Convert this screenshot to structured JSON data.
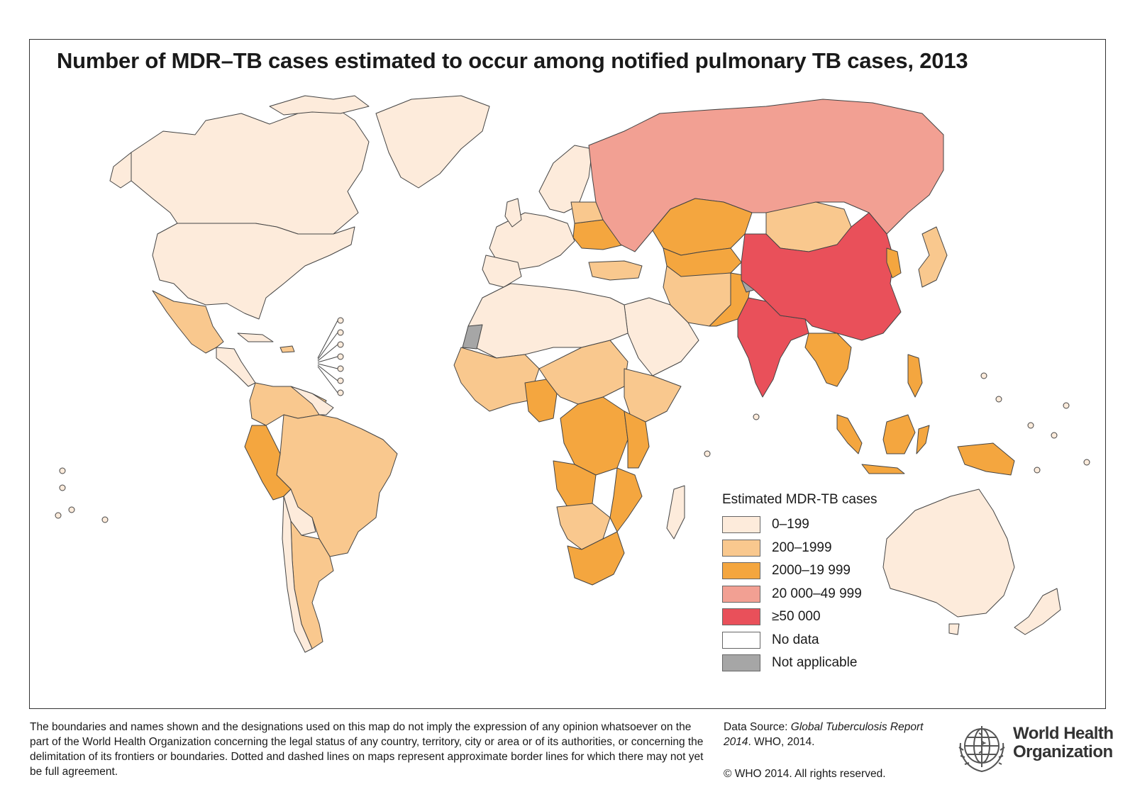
{
  "title": "Number of MDR–TB cases estimated to occur among notified pulmonary TB cases, 2013",
  "legend": {
    "heading": "Estimated MDR-TB cases",
    "items": [
      {
        "label": "0–199",
        "color": "#fdebdb"
      },
      {
        "label": "200–1999",
        "color": "#f9c88e"
      },
      {
        "label": "2000–19 999",
        "color": "#f4a63f"
      },
      {
        "label": "20 000–49 999",
        "color": "#f2a093"
      },
      {
        "label": "≥50 000",
        "color": "#e9505a"
      },
      {
        "label": "No data",
        "color": "#ffffff"
      },
      {
        "label": "Not applicable",
        "color": "#a6a6a6"
      }
    ]
  },
  "disclaimer": "The boundaries and names shown and the designations used on this map do not imply the expression of any opinion whatsoever on the part of the World Health Organization concerning the legal status of any country, territory, city or area or of its authorities, or concerning the delimitation of its frontiers or boundaries. Dotted and dashed lines on maps represent approximate border lines for which there may not yet be full agreement.",
  "source": {
    "prefix": "Data Source: ",
    "publication": "Global Tuberculosis Report 2014",
    "suffix": ". WHO, 2014."
  },
  "copyright": "© WHO 2014. All rights reserved.",
  "organization": {
    "line1": "World Health",
    "line2": "Organization"
  },
  "map_regions": [
    {
      "region": "Canada",
      "category": "0–199"
    },
    {
      "region": "United States",
      "category": "0–199"
    },
    {
      "region": "Greenland",
      "category": "0–199"
    },
    {
      "region": "Mexico",
      "category": "200–1999"
    },
    {
      "region": "Brazil",
      "category": "200–1999"
    },
    {
      "region": "Peru",
      "category": "2000–19 999"
    },
    {
      "region": "Russian Federation",
      "category": "20 000–49 999"
    },
    {
      "region": "China",
      "category": "≥50 000"
    },
    {
      "region": "India",
      "category": "≥50 000"
    },
    {
      "region": "Kazakhstan",
      "category": "2000–19 999"
    },
    {
      "region": "Ukraine",
      "category": "2000–19 999"
    },
    {
      "region": "Nigeria",
      "category": "2000–19 999"
    },
    {
      "region": "South Africa",
      "category": "2000–19 999"
    },
    {
      "region": "Indonesia",
      "category": "2000–19 999"
    },
    {
      "region": "Australia",
      "category": "0–199"
    },
    {
      "region": "Western Sahara",
      "category": "Not applicable"
    }
  ]
}
